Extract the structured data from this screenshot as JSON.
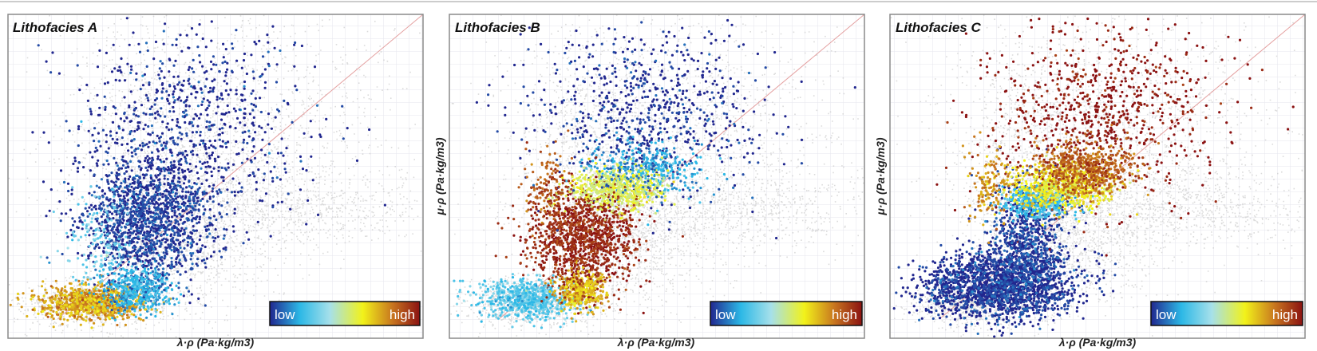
{
  "chart_data": [
    {
      "type": "scatter",
      "title": "Lithofacies A",
      "xlabel": "λ·ρ (Pa·kg/m3)",
      "ylabel": "",
      "xlim": [
        0,
        100
      ],
      "ylim": [
        0,
        100
      ],
      "grid": true,
      "background_cloud_color": "#cfcfcf",
      "reference_line": {
        "x": [
          12,
          100
        ],
        "y": [
          6,
          100
        ],
        "color": "#e4a0a0"
      },
      "colorbar": {
        "low_label": "low",
        "high_label": "high",
        "placement": "bottom-right"
      },
      "clusters": [
        {
          "cx": 20,
          "cy": 11,
          "sx": 6,
          "sy": 2.5,
          "value": 0.72,
          "n": 900
        },
        {
          "cx": 31,
          "cy": 15,
          "sx": 4,
          "sy": 3.5,
          "value": 0.18,
          "n": 500
        },
        {
          "cx": 34,
          "cy": 36,
          "sx": 8,
          "sy": 10,
          "value": 0.02,
          "n": 1500
        },
        {
          "cx": 44,
          "cy": 66,
          "sx": 14,
          "sy": 15,
          "value": 0.0,
          "n": 800
        },
        {
          "cx": 22,
          "cy": 30,
          "sx": 4,
          "sy": 8,
          "value": 0.3,
          "n": 150
        }
      ]
    },
    {
      "type": "scatter",
      "title": "Lithofacies B",
      "xlabel": "λ·ρ (Pa·kg/m3)",
      "ylabel": "μ·ρ (Pa·kg/m3)",
      "xlim": [
        0,
        100
      ],
      "ylim": [
        0,
        100
      ],
      "grid": true,
      "background_cloud_color": "#cfcfcf",
      "reference_line": {
        "x": [
          12,
          100
        ],
        "y": [
          6,
          100
        ],
        "color": "#e4a0a0"
      },
      "colorbar": {
        "low_label": "low",
        "high_label": "high",
        "placement": "bottom-right"
      },
      "clusters": [
        {
          "cx": 19,
          "cy": 12,
          "sx": 6,
          "sy": 3,
          "value": 0.28,
          "n": 700
        },
        {
          "cx": 32,
          "cy": 15,
          "sx": 3,
          "sy": 3,
          "value": 0.7,
          "n": 400
        },
        {
          "cx": 32,
          "cy": 31,
          "sx": 6,
          "sy": 8,
          "value": 0.97,
          "n": 1200
        },
        {
          "cx": 40,
          "cy": 46,
          "sx": 6,
          "sy": 3.5,
          "value": 0.55,
          "n": 600
        },
        {
          "cx": 47,
          "cy": 52,
          "sx": 7,
          "sy": 4,
          "value": 0.18,
          "n": 400
        },
        {
          "cx": 48,
          "cy": 70,
          "sx": 14,
          "sy": 13,
          "value": 0.0,
          "n": 750
        },
        {
          "cx": 24,
          "cy": 45,
          "sx": 3,
          "sy": 7,
          "value": 0.85,
          "n": 150
        }
      ]
    },
    {
      "type": "scatter",
      "title": "Lithofacies C",
      "xlabel": "λ·ρ (Pa·kg/m3)",
      "ylabel": "μ·ρ (Pa·kg/m3)",
      "xlim": [
        0,
        100
      ],
      "ylim": [
        0,
        100
      ],
      "grid": true,
      "background_cloud_color": "#cfcfcf",
      "reference_line": {
        "x": [
          12,
          100
        ],
        "y": [
          6,
          100
        ],
        "color": "#e4a0a0"
      },
      "colorbar": {
        "low_label": "low",
        "high_label": "high",
        "placement": "bottom-right"
      },
      "clusters": [
        {
          "cx": 26,
          "cy": 16,
          "sx": 9,
          "sy": 5,
          "value": 0.0,
          "n": 1800
        },
        {
          "cx": 33,
          "cy": 28,
          "sx": 5,
          "sy": 10,
          "value": 0.02,
          "n": 900
        },
        {
          "cx": 36,
          "cy": 42,
          "sx": 4,
          "sy": 2.5,
          "value": 0.22,
          "n": 400
        },
        {
          "cx": 41,
          "cy": 47,
          "sx": 6,
          "sy": 3.5,
          "value": 0.62,
          "n": 700
        },
        {
          "cx": 47,
          "cy": 52,
          "sx": 6,
          "sy": 4,
          "value": 0.82,
          "n": 600
        },
        {
          "cx": 50,
          "cy": 70,
          "sx": 14,
          "sy": 13,
          "value": 1.0,
          "n": 800
        },
        {
          "cx": 24,
          "cy": 48,
          "sx": 3,
          "sy": 6,
          "value": 0.75,
          "n": 150
        }
      ]
    }
  ],
  "colormap": [
    "#21278f",
    "#2cb8e6",
    "#a6e0ea",
    "#f2f21a",
    "#c7741f",
    "#8b1212"
  ]
}
